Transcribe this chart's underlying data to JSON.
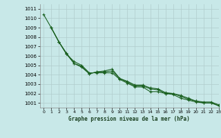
{
  "title": "Graphe pression niveau de la mer (hPa)",
  "bg_color": "#c8e8e8",
  "grid_color": "#b0cccc",
  "line_color": "#1a6020",
  "marker_color": "#1a6020",
  "xlim": [
    -0.5,
    23
  ],
  "ylim": [
    1000.5,
    1011.5
  ],
  "yticks": [
    1001,
    1002,
    1003,
    1004,
    1005,
    1006,
    1007,
    1008,
    1009,
    1010,
    1011
  ],
  "xticks": [
    0,
    1,
    2,
    3,
    4,
    5,
    6,
    7,
    8,
    9,
    10,
    11,
    12,
    13,
    14,
    15,
    16,
    17,
    18,
    19,
    20,
    21,
    22,
    23
  ],
  "series_with_markers": [
    [
      1009.0,
      1007.5,
      1006.2,
      1005.2,
      1004.9,
      1004.1,
      1004.3,
      1004.3,
      1004.4,
      1003.6,
      1003.2,
      1002.8,
      1002.8,
      1002.5,
      1002.4,
      1002.0,
      1001.9,
      1001.5,
      1001.3,
      1001.1,
      1001.0,
      1001.0,
      1000.7
    ],
    [
      1009.0,
      1007.5,
      1006.2,
      1005.4,
      1005.0,
      1004.2,
      1004.2,
      1004.2,
      1004.2,
      1003.5,
      1003.1,
      1002.7,
      1002.7,
      1002.2,
      1002.2,
      1002.0,
      1002.0,
      1001.8,
      1001.5,
      1001.2,
      1001.0,
      1001.0,
      1000.7
    ]
  ],
  "series_smooth": [
    [
      1010.4,
      1009.0,
      1007.5,
      1006.3,
      1005.2,
      1004.8,
      1004.1,
      1004.3,
      1004.4,
      1004.6,
      1003.6,
      1003.3,
      1002.9,
      1002.9,
      1002.6,
      1002.5,
      1002.1,
      1002.0,
      1001.7,
      1001.4,
      1001.2,
      1001.1,
      1001.1,
      1000.8
    ]
  ],
  "x_markers_start": 1
}
